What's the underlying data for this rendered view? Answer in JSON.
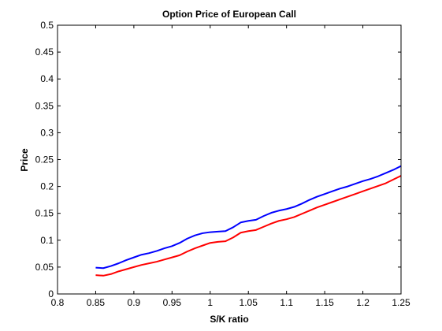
{
  "chart_data": {
    "type": "line",
    "title": "Option Price of European Call",
    "xlabel": "S/K ratio",
    "ylabel": "Price",
    "xlim": [
      0.8,
      1.25
    ],
    "ylim": [
      0,
      0.5
    ],
    "xticks": [
      "0.8",
      "0.85",
      "0.9",
      "0.95",
      "1",
      "1.05",
      "1.1",
      "1.15",
      "1.2",
      "1.25"
    ],
    "yticks": [
      "0",
      "0.05",
      "0.1",
      "0.15",
      "0.2",
      "0.25",
      "0.3",
      "0.35",
      "0.4",
      "0.45",
      "0.5"
    ],
    "grid": false,
    "legend": false,
    "series": [
      {
        "color": "#0000ff",
        "x": [
          0.85,
          0.86,
          0.87,
          0.88,
          0.89,
          0.9,
          0.91,
          0.92,
          0.93,
          0.94,
          0.95,
          0.96,
          0.97,
          0.98,
          0.99,
          1.0,
          1.01,
          1.02,
          1.03,
          1.04,
          1.05,
          1.06,
          1.07,
          1.08,
          1.09,
          1.1,
          1.11,
          1.12,
          1.13,
          1.14,
          1.15,
          1.16,
          1.17,
          1.18,
          1.19,
          1.2,
          1.21,
          1.22,
          1.23,
          1.24,
          1.25
        ],
        "y": [
          0.049,
          0.048,
          0.052,
          0.057,
          0.063,
          0.068,
          0.073,
          0.076,
          0.08,
          0.085,
          0.089,
          0.095,
          0.103,
          0.109,
          0.113,
          0.115,
          0.116,
          0.117,
          0.124,
          0.133,
          0.136,
          0.138,
          0.145,
          0.151,
          0.155,
          0.158,
          0.162,
          0.168,
          0.175,
          0.181,
          0.186,
          0.191,
          0.196,
          0.2,
          0.205,
          0.21,
          0.214,
          0.219,
          0.225,
          0.231,
          0.238
        ]
      },
      {
        "color": "#ff0000",
        "x": [
          0.85,
          0.86,
          0.87,
          0.88,
          0.89,
          0.9,
          0.91,
          0.92,
          0.93,
          0.94,
          0.95,
          0.96,
          0.97,
          0.98,
          0.99,
          1.0,
          1.01,
          1.02,
          1.03,
          1.04,
          1.05,
          1.06,
          1.07,
          1.08,
          1.09,
          1.1,
          1.11,
          1.12,
          1.13,
          1.14,
          1.15,
          1.16,
          1.17,
          1.18,
          1.19,
          1.2,
          1.21,
          1.22,
          1.23,
          1.24,
          1.25
        ],
        "y": [
          0.035,
          0.034,
          0.037,
          0.042,
          0.046,
          0.05,
          0.054,
          0.057,
          0.06,
          0.064,
          0.068,
          0.072,
          0.079,
          0.085,
          0.09,
          0.095,
          0.097,
          0.098,
          0.105,
          0.114,
          0.117,
          0.119,
          0.125,
          0.131,
          0.136,
          0.139,
          0.143,
          0.149,
          0.155,
          0.161,
          0.166,
          0.171,
          0.176,
          0.181,
          0.186,
          0.191,
          0.196,
          0.201,
          0.206,
          0.213,
          0.22
        ]
      }
    ]
  }
}
